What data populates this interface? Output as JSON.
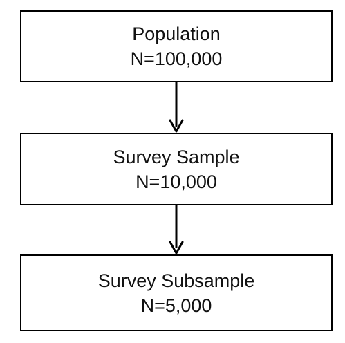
{
  "diagram": {
    "nodes": [
      {
        "id": "population",
        "label": "Population",
        "count": "N=100,000"
      },
      {
        "id": "sample",
        "label": "Survey Sample",
        "count": "N=10,000"
      },
      {
        "id": "subsample",
        "label": "Survey Subsample",
        "count": "N=5,000"
      }
    ],
    "edges": [
      {
        "from": "population",
        "to": "sample"
      },
      {
        "from": "sample",
        "to": "subsample"
      }
    ]
  }
}
